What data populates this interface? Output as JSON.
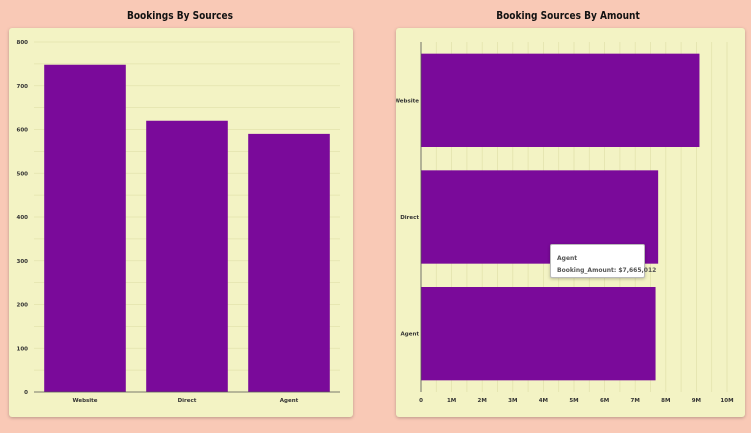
{
  "chart_data": [
    {
      "type": "bar",
      "orientation": "vertical",
      "title": "Bookings By Sources",
      "categories": [
        "Website",
        "Direct",
        "Agent"
      ],
      "values": [
        748,
        620,
        590
      ],
      "ylim": [
        0,
        800
      ],
      "yticks": [
        "0",
        "100",
        "200",
        "300",
        "400",
        "500",
        "600",
        "700",
        "800"
      ],
      "grid": true,
      "color": "#7a0a9a"
    },
    {
      "type": "bar",
      "orientation": "horizontal",
      "title": "Booking Sources By Amount",
      "categories": [
        "Website",
        "Direct",
        "Agent"
      ],
      "values": [
        9100000,
        7750000,
        7665012
      ],
      "xlim": [
        0,
        10000000
      ],
      "xticks": [
        "0",
        "1M",
        "2M",
        "3M",
        "4M",
        "5M",
        "6M",
        "7M",
        "8M",
        "9M",
        "10M"
      ],
      "grid": true,
      "color": "#7a0a9a",
      "tooltip": {
        "category": "Agent",
        "text": "Booking_Amount: $7,665,012"
      }
    }
  ]
}
